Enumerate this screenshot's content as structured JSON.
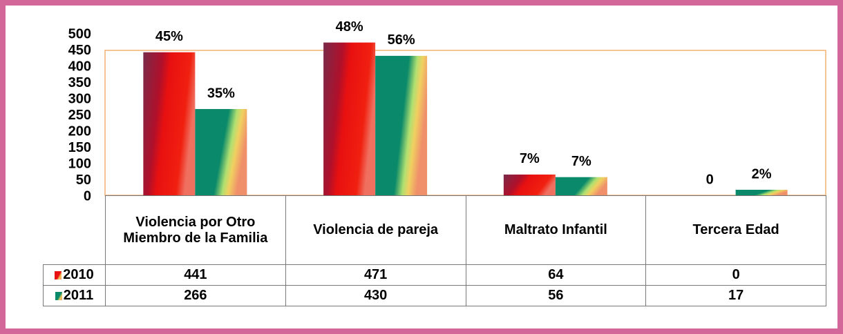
{
  "chart_data": {
    "type": "bar",
    "categories": [
      "Violencia por Otro Miembro de la Familia",
      "Violencia de pareja",
      "Maltrato Infantil",
      "Tercera Edad"
    ],
    "series": [
      {
        "name": "2010",
        "color": "#e81010",
        "values": [
          441,
          471,
          64,
          0
        ],
        "value_labels": [
          "45%",
          "48%",
          "7%",
          "0"
        ]
      },
      {
        "name": "2011",
        "color": "#0a8a6a",
        "values": [
          266,
          430,
          56,
          17
        ],
        "value_labels": [
          "35%",
          "56%",
          "7%",
          "2%"
        ]
      }
    ],
    "ylim": [
      0,
      500
    ],
    "yticks": [
      0,
      50,
      100,
      150,
      200,
      250,
      300,
      350,
      400,
      450,
      500
    ],
    "grid": false,
    "data_table": true
  }
}
